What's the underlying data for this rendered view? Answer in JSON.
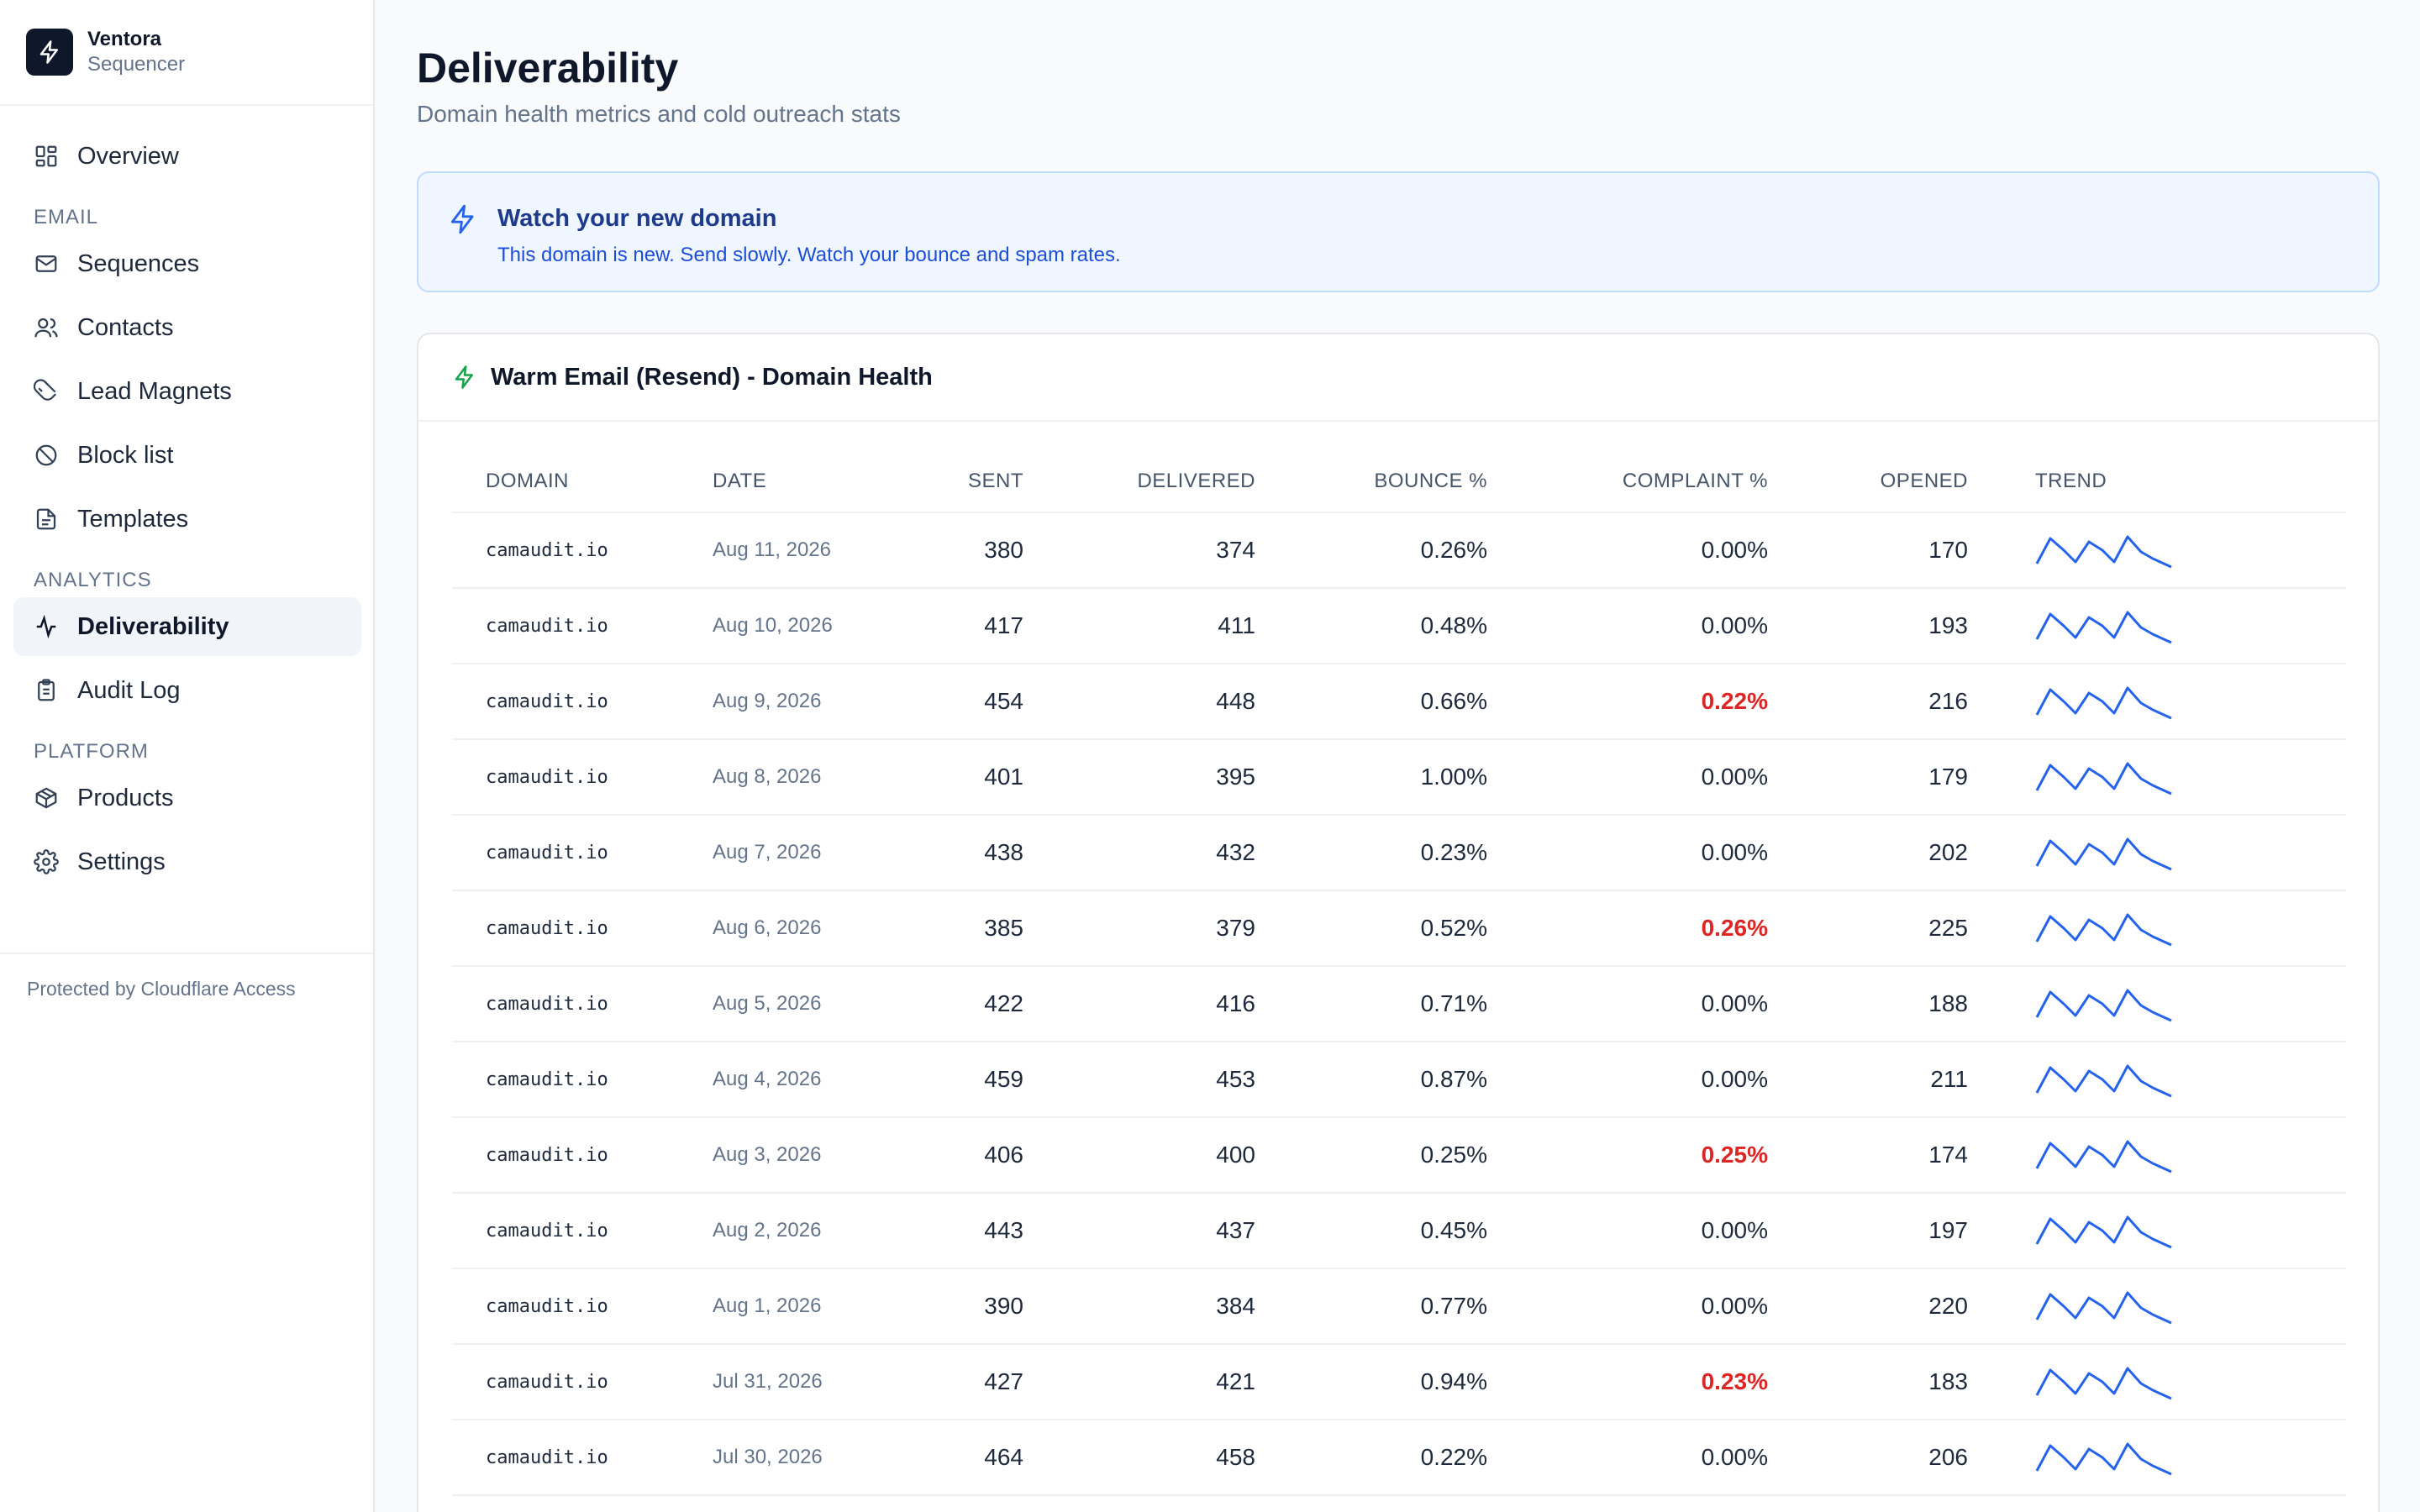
{
  "brand": {
    "name": "Ventora",
    "subtitle": "Sequencer"
  },
  "nav": {
    "overview": "Overview",
    "section_email": "EMAIL",
    "sequences": "Sequences",
    "contacts": "Contacts",
    "lead_magnets": "Lead Magnets",
    "block_list": "Block list",
    "templates": "Templates",
    "section_analytics": "ANALYTICS",
    "deliverability": "Deliverability",
    "audit_log": "Audit Log",
    "section_platform": "PLATFORM",
    "products": "Products",
    "settings": "Settings"
  },
  "sidebar_footer": "Protected by Cloudflare Access",
  "page": {
    "title": "Deliverability",
    "subtitle": "Domain health metrics and cold outreach stats"
  },
  "notice": {
    "title": "Watch your new domain",
    "text": "This domain is new. Send slowly. Watch your bounce and spam rates."
  },
  "card": {
    "title": "Warm Email (Resend) - Domain Health"
  },
  "table": {
    "headers": {
      "domain": "DOMAIN",
      "date": "DATE",
      "sent": "SENT",
      "delivered": "DELIVERED",
      "bounce": "BOUNCE %",
      "complaint": "COMPLAINT %",
      "opened": "OPENED",
      "trend": "TREND"
    },
    "rows": [
      {
        "domain": "camaudit.io",
        "date": "Aug 11, 2026",
        "sent": "380",
        "delivered": "374",
        "bounce": "0.26%",
        "complaint": "0.00%",
        "opened": "170"
      },
      {
        "domain": "camaudit.io",
        "date": "Aug 10, 2026",
        "sent": "417",
        "delivered": "411",
        "bounce": "0.48%",
        "complaint": "0.00%",
        "opened": "193"
      },
      {
        "domain": "camaudit.io",
        "date": "Aug 9, 2026",
        "sent": "454",
        "delivered": "448",
        "bounce": "0.66%",
        "complaint": "0.22%",
        "opened": "216"
      },
      {
        "domain": "camaudit.io",
        "date": "Aug 8, 2026",
        "sent": "401",
        "delivered": "395",
        "bounce": "1.00%",
        "complaint": "0.00%",
        "opened": "179"
      },
      {
        "domain": "camaudit.io",
        "date": "Aug 7, 2026",
        "sent": "438",
        "delivered": "432",
        "bounce": "0.23%",
        "complaint": "0.00%",
        "opened": "202"
      },
      {
        "domain": "camaudit.io",
        "date": "Aug 6, 2026",
        "sent": "385",
        "delivered": "379",
        "bounce": "0.52%",
        "complaint": "0.26%",
        "opened": "225"
      },
      {
        "domain": "camaudit.io",
        "date": "Aug 5, 2026",
        "sent": "422",
        "delivered": "416",
        "bounce": "0.71%",
        "complaint": "0.00%",
        "opened": "188"
      },
      {
        "domain": "camaudit.io",
        "date": "Aug 4, 2026",
        "sent": "459",
        "delivered": "453",
        "bounce": "0.87%",
        "complaint": "0.00%",
        "opened": "211"
      },
      {
        "domain": "camaudit.io",
        "date": "Aug 3, 2026",
        "sent": "406",
        "delivered": "400",
        "bounce": "0.25%",
        "complaint": "0.25%",
        "opened": "174"
      },
      {
        "domain": "camaudit.io",
        "date": "Aug 2, 2026",
        "sent": "443",
        "delivered": "437",
        "bounce": "0.45%",
        "complaint": "0.00%",
        "opened": "197"
      },
      {
        "domain": "camaudit.io",
        "date": "Aug 1, 2026",
        "sent": "390",
        "delivered": "384",
        "bounce": "0.77%",
        "complaint": "0.00%",
        "opened": "220"
      },
      {
        "domain": "camaudit.io",
        "date": "Jul 31, 2026",
        "sent": "427",
        "delivered": "421",
        "bounce": "0.94%",
        "complaint": "0.23%",
        "opened": "183"
      },
      {
        "domain": "camaudit.io",
        "date": "Jul 30, 2026",
        "sent": "464",
        "delivered": "458",
        "bounce": "0.22%",
        "complaint": "0.00%",
        "opened": "206"
      }
    ]
  },
  "colors": {
    "sparkline": "#2563eb",
    "complaint_alert": "#dc2626",
    "notice_bg": "#eff6ff",
    "notice_icon": "#2563eb",
    "card_icon": "#16a34a",
    "brand_logo_bg": "#0f172a"
  },
  "icons": {
    "brand": "bolt-icon",
    "overview": "grid-icon",
    "sequences": "mail-icon",
    "contacts": "users-icon",
    "lead_magnets": "magnet-icon",
    "block_list": "ban-icon",
    "templates": "file-text-icon",
    "deliverability": "activity-icon",
    "audit_log": "clipboard-icon",
    "products": "package-icon",
    "settings": "gear-icon",
    "notice": "bolt-icon",
    "card": "bolt-icon"
  }
}
